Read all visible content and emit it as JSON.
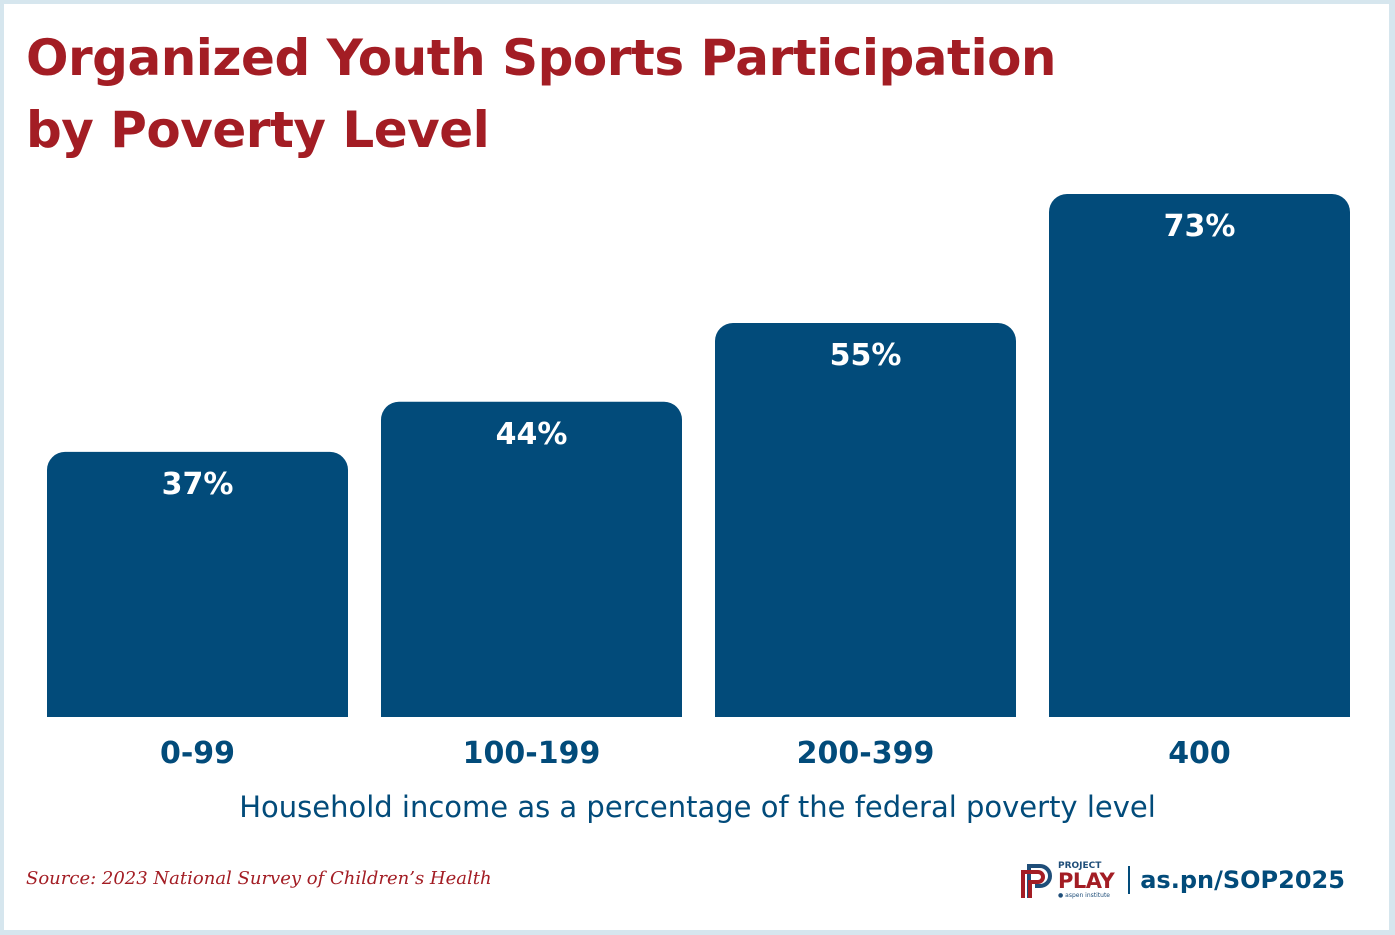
{
  "colors": {
    "title": "#a31d24",
    "bar": "#024b7a",
    "axis_text": "#024b7a",
    "frame": "#d6e6ee",
    "value_label": "#ffffff"
  },
  "chart_data": {
    "type": "bar",
    "title": "Organized Youth Sports Participation by Poverty Level",
    "title_lines": [
      "Organized Youth Sports Participation",
      "by Poverty Level"
    ],
    "categories": [
      "0-99",
      "100-199",
      "200-399",
      "400"
    ],
    "values": [
      37,
      44,
      55,
      73
    ],
    "value_labels": [
      "37%",
      "44%",
      "55%",
      "73%"
    ],
    "unit": "%",
    "xlabel": "Household income as a percentage of the federal poverty level",
    "ylabel": "",
    "ylim": [
      0,
      73
    ],
    "grid": false,
    "legend": "none"
  },
  "footer": {
    "source": "Source: 2023 National Survey of Children’s Health",
    "logo": {
      "icon": "project-play-p-logo-icon",
      "project": "PROJECT",
      "play": "PLAY",
      "org": "aspen institute"
    },
    "url": "as.pn/SOP2025"
  }
}
